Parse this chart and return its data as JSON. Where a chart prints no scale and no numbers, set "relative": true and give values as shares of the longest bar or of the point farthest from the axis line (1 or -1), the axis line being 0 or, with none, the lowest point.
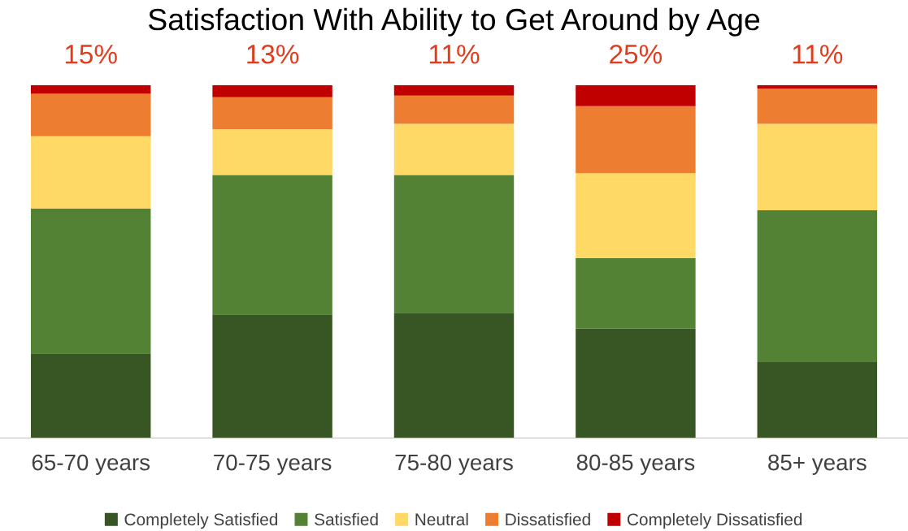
{
  "chart_data": {
    "type": "bar",
    "title": "Satisfaction With Ability to Get Around by Age",
    "categories": [
      "65-70 years",
      "70-75 years",
      "75-80 years",
      "80-85 years",
      "85+ years"
    ],
    "stacked": true,
    "relative": true,
    "legend": "bottom",
    "grid": false,
    "series": [
      {
        "name": "Completely Satisfied",
        "color": "#375623",
        "values": [
          0.24,
          0.35,
          0.355,
          0.31,
          0.215
        ]
      },
      {
        "name": "Satisfied",
        "color": "#548235",
        "values": [
          0.41,
          0.395,
          0.39,
          0.2,
          0.43
        ]
      },
      {
        "name": "Neutral",
        "color": "#ffd966",
        "values": [
          0.205,
          0.13,
          0.145,
          0.24,
          0.245
        ]
      },
      {
        "name": "Dissatisfied",
        "color": "#ed7d31",
        "values": [
          0.12,
          0.09,
          0.08,
          0.19,
          0.1
        ]
      },
      {
        "name": "Completely Dissatisfied",
        "color": "#c00000",
        "values": [
          0.025,
          0.035,
          0.03,
          0.06,
          0.01
        ]
      }
    ],
    "annotations": [
      {
        "text": "15%",
        "x": "65-70 years",
        "y": 1
      },
      {
        "text": "13%",
        "x": "70-75 years",
        "y": 1
      },
      {
        "text": "11%",
        "x": "75-80 years",
        "y": 1
      },
      {
        "text": "25%",
        "x": "80-85 years",
        "y": 1
      },
      {
        "text": "11%",
        "x": "85+ years",
        "y": 1
      }
    ]
  }
}
